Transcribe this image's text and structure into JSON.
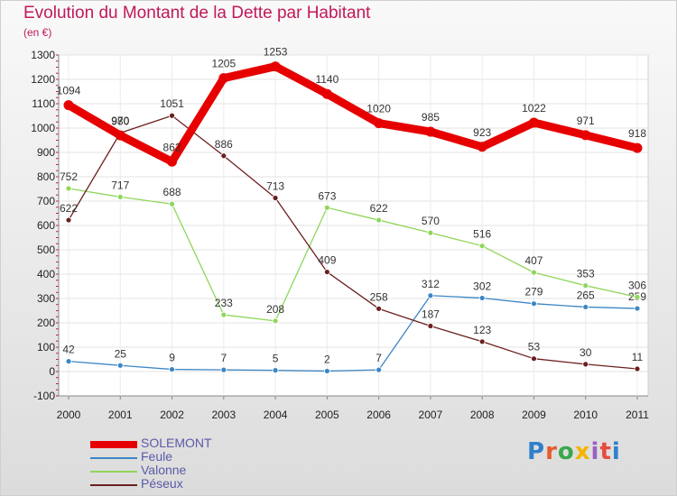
{
  "chart_data": {
    "type": "line",
    "title": "Evolution du Montant de la Dette par Habitant",
    "subtitle": "(en €)",
    "x": [
      "2000",
      "2001",
      "2002",
      "2003",
      "2004",
      "2005",
      "2006",
      "2007",
      "2008",
      "2009",
      "2010",
      "2011"
    ],
    "ylim": [
      -100,
      1300
    ],
    "yticks": [
      -100,
      0,
      100,
      200,
      300,
      400,
      500,
      600,
      700,
      800,
      900,
      1000,
      1100,
      1200,
      1300
    ],
    "grid": true,
    "legend_position": "bottom-left",
    "series": [
      {
        "name": "SOLEMONT",
        "color": "#e60000",
        "values": [
          1094,
          970,
          862,
          1205,
          1253,
          1140,
          1020,
          985,
          923,
          1022,
          971,
          918
        ]
      },
      {
        "name": "Feule",
        "color": "#3b86c6",
        "values": [
          42,
          25,
          9,
          7,
          5,
          2,
          7,
          312,
          302,
          279,
          265,
          259
        ]
      },
      {
        "name": "Valonne",
        "color": "#8fd65a",
        "values": [
          752,
          717,
          688,
          233,
          208,
          673,
          622,
          570,
          516,
          407,
          353,
          306
        ]
      },
      {
        "name": "Péseux",
        "color": "#6b1f1f",
        "values": [
          622,
          980,
          1051,
          886,
          713,
          409,
          258,
          187,
          123,
          53,
          30,
          11
        ]
      }
    ]
  },
  "logo": {
    "text": "Proxiti"
  }
}
